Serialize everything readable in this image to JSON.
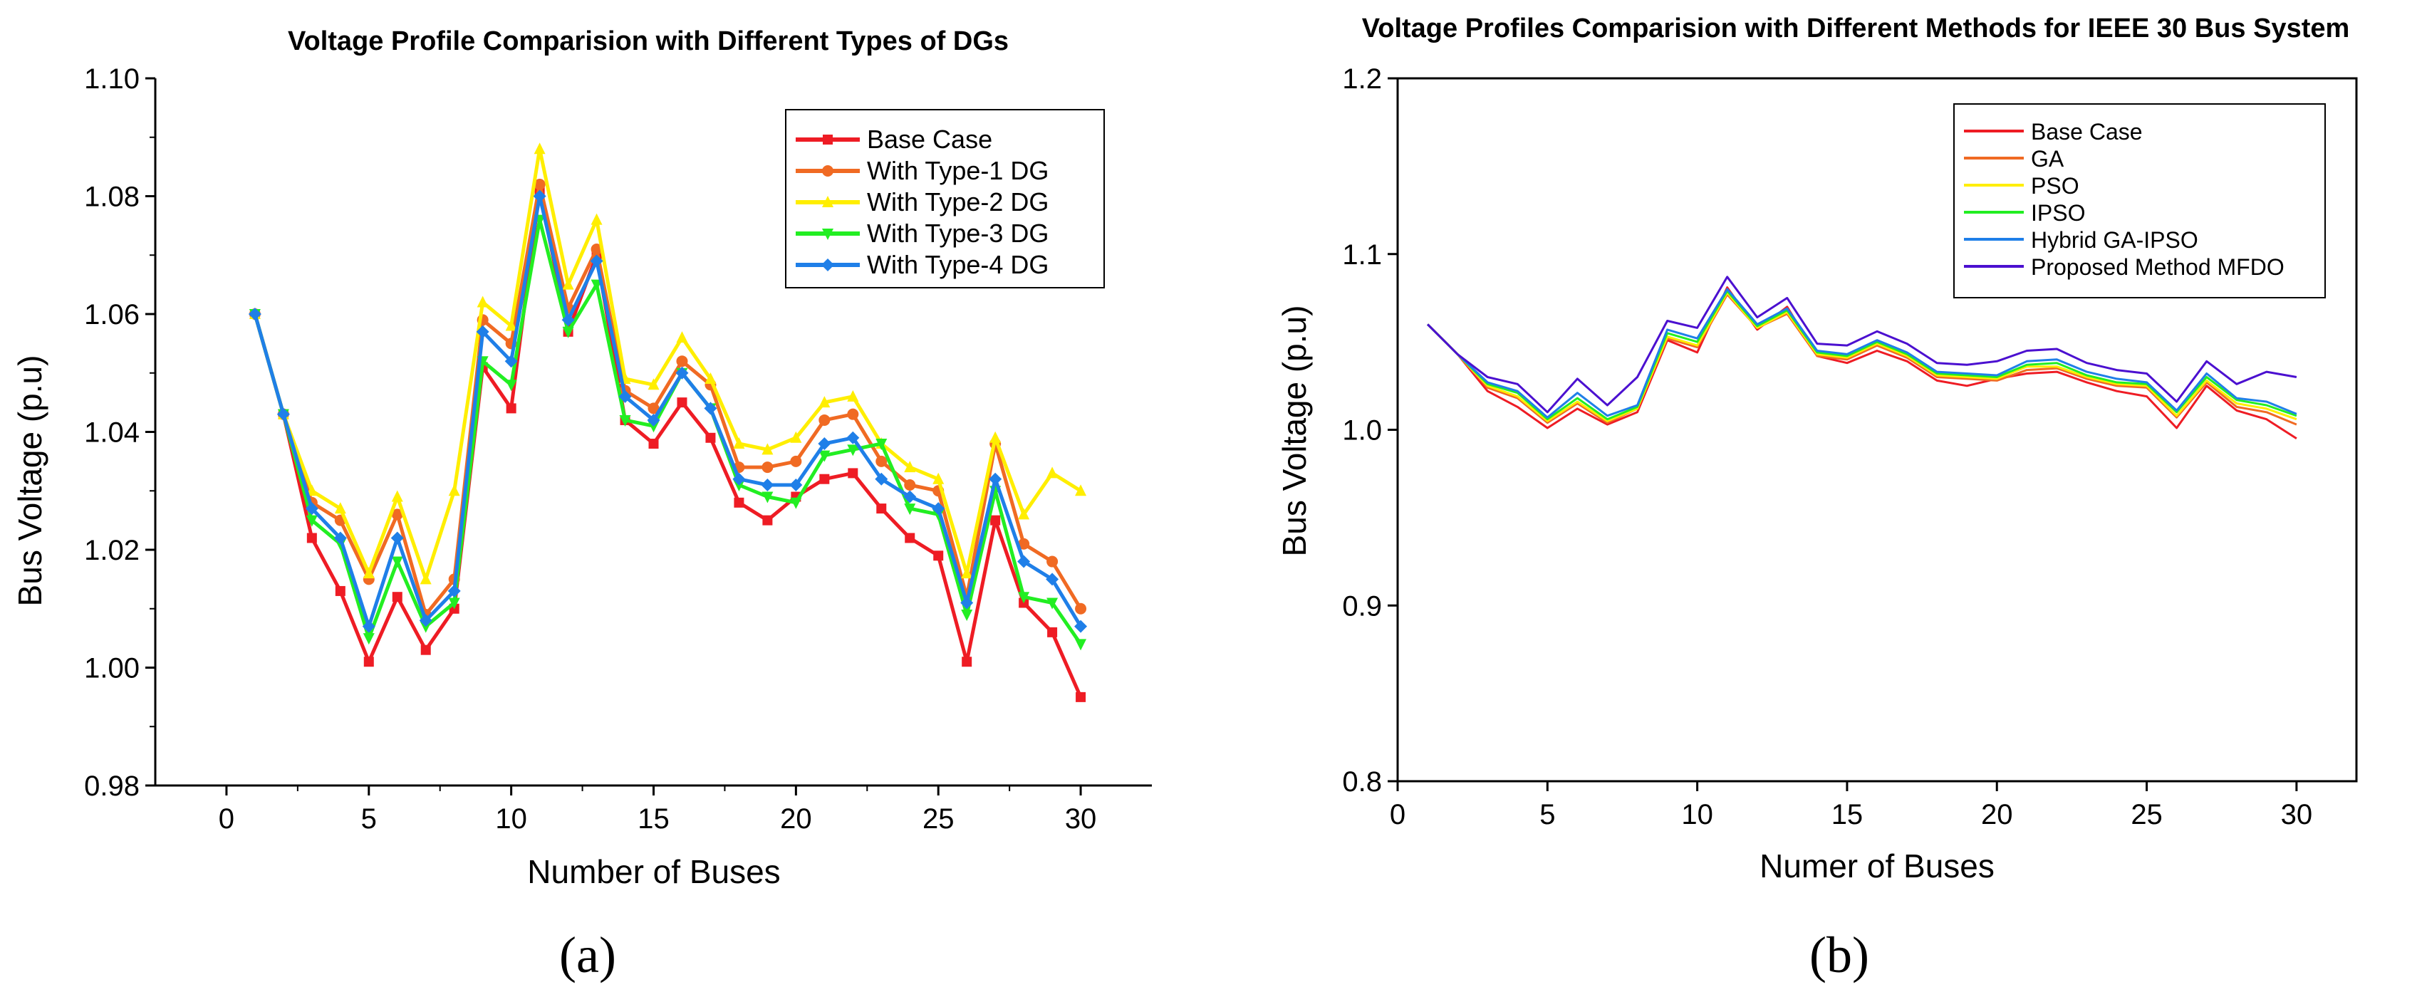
{
  "chart_data": [
    {
      "type": "line",
      "panel_label": "(a)",
      "title": "Voltage Profile Comparision with Different Types of DGs",
      "xlabel": "Number of Buses",
      "ylabel": "Bus Voltage (p.u)",
      "xlim": [
        -2.5,
        32.5
      ],
      "ylim": [
        0.98,
        1.1
      ],
      "xticks": [
        0,
        5,
        10,
        15,
        20,
        25,
        30
      ],
      "yticks": [
        0.98,
        1.0,
        1.02,
        1.04,
        1.06,
        1.08,
        1.1
      ],
      "ytick_labels": [
        "0.98",
        "1.00",
        "1.02",
        "1.04",
        "1.06",
        "1.08",
        "1.10"
      ],
      "legend_position": "top-right",
      "x": [
        1,
        2,
        3,
        4,
        5,
        6,
        7,
        8,
        9,
        10,
        11,
        12,
        13,
        14,
        15,
        16,
        17,
        18,
        19,
        20,
        21,
        22,
        23,
        24,
        25,
        26,
        27,
        28,
        29,
        30
      ],
      "series": [
        {
          "name": "Base Case",
          "color": "#ee1c24",
          "marker": "square",
          "values": [
            1.06,
            1.043,
            1.022,
            1.013,
            1.001,
            1.012,
            1.003,
            1.01,
            1.051,
            1.044,
            1.081,
            1.057,
            1.07,
            1.042,
            1.038,
            1.045,
            1.039,
            1.028,
            1.025,
            1.029,
            1.032,
            1.033,
            1.027,
            1.022,
            1.019,
            1.001,
            1.025,
            1.011,
            1.006,
            0.995
          ]
        },
        {
          "name": "With Type-1 DG",
          "color": "#f06a23",
          "marker": "circle",
          "values": [
            1.06,
            1.043,
            1.028,
            1.025,
            1.015,
            1.026,
            1.009,
            1.015,
            1.059,
            1.055,
            1.082,
            1.061,
            1.071,
            1.047,
            1.044,
            1.052,
            1.048,
            1.034,
            1.034,
            1.035,
            1.042,
            1.043,
            1.035,
            1.031,
            1.03,
            1.012,
            1.038,
            1.021,
            1.018,
            1.01
          ]
        },
        {
          "name": "With Type-2 DG",
          "color": "#ffee00",
          "marker": "triangle-up",
          "values": [
            1.06,
            1.043,
            1.03,
            1.027,
            1.016,
            1.029,
            1.015,
            1.03,
            1.062,
            1.058,
            1.088,
            1.065,
            1.076,
            1.049,
            1.048,
            1.056,
            1.049,
            1.038,
            1.037,
            1.039,
            1.045,
            1.046,
            1.038,
            1.034,
            1.032,
            1.016,
            1.039,
            1.026,
            1.033,
            1.03
          ]
        },
        {
          "name": "With Type-3 DG",
          "color": "#22ee22",
          "marker": "triangle-down",
          "values": [
            1.06,
            1.043,
            1.025,
            1.021,
            1.005,
            1.018,
            1.007,
            1.011,
            1.052,
            1.048,
            1.076,
            1.057,
            1.065,
            1.042,
            1.041,
            1.05,
            1.044,
            1.031,
            1.029,
            1.028,
            1.036,
            1.037,
            1.038,
            1.027,
            1.026,
            1.009,
            1.03,
            1.012,
            1.011,
            1.004
          ]
        },
        {
          "name": "With Type-4 DG",
          "color": "#1f7fe8",
          "marker": "diamond",
          "values": [
            1.06,
            1.043,
            1.027,
            1.022,
            1.007,
            1.022,
            1.008,
            1.013,
            1.057,
            1.052,
            1.08,
            1.059,
            1.069,
            1.046,
            1.042,
            1.05,
            1.044,
            1.032,
            1.031,
            1.031,
            1.038,
            1.039,
            1.032,
            1.029,
            1.027,
            1.011,
            1.032,
            1.018,
            1.015,
            1.007
          ]
        }
      ]
    },
    {
      "type": "line",
      "panel_label": "(b)",
      "title": "Voltage Profiles Comparision with Different Methods for IEEE 30 Bus System",
      "xlabel": "Numer of Buses",
      "ylabel": "Bus Voltage (p.u)",
      "xlim": [
        0,
        32
      ],
      "ylim": [
        0.8,
        1.2
      ],
      "xticks": [
        0,
        5,
        10,
        15,
        20,
        25,
        30
      ],
      "yticks": [
        0.8,
        0.9,
        1.0,
        1.1,
        1.2
      ],
      "ytick_labels": [
        "0.8",
        "0.9",
        "1.0",
        "1.1",
        "1.2"
      ],
      "legend_position": "top-right",
      "x": [
        1,
        2,
        3,
        4,
        5,
        6,
        7,
        8,
        9,
        10,
        11,
        12,
        13,
        14,
        15,
        16,
        17,
        18,
        19,
        20,
        21,
        22,
        23,
        24,
        25,
        26,
        27,
        28,
        29,
        30
      ],
      "series": [
        {
          "name": "Base Case",
          "color": "#ee1c24",
          "values": [
            1.06,
            1.043,
            1.022,
            1.013,
            1.001,
            1.012,
            1.003,
            1.01,
            1.051,
            1.044,
            1.081,
            1.057,
            1.07,
            1.042,
            1.038,
            1.045,
            1.039,
            1.028,
            1.025,
            1.029,
            1.032,
            1.033,
            1.027,
            1.022,
            1.019,
            1.001,
            1.025,
            1.011,
            1.006,
            0.995
          ]
        },
        {
          "name": "GA",
          "color": "#f06a23",
          "values": [
            1.06,
            1.043,
            1.024,
            1.018,
            1.004,
            1.015,
            1.004,
            1.012,
            1.052,
            1.047,
            1.077,
            1.058,
            1.066,
            1.042,
            1.04,
            1.048,
            1.041,
            1.03,
            1.029,
            1.028,
            1.034,
            1.035,
            1.029,
            1.025,
            1.024,
            1.007,
            1.027,
            1.013,
            1.01,
            1.003
          ]
        },
        {
          "name": "PSO",
          "color": "#ffee00",
          "values": [
            1.06,
            1.043,
            1.025,
            1.019,
            1.005,
            1.016,
            1.005,
            1.012,
            1.053,
            1.048,
            1.078,
            1.058,
            1.067,
            1.043,
            1.041,
            1.049,
            1.042,
            1.031,
            1.03,
            1.029,
            1.036,
            1.036,
            1.03,
            1.026,
            1.025,
            1.008,
            1.028,
            1.015,
            1.012,
            1.006
          ]
        },
        {
          "name": "IPSO",
          "color": "#22ee22",
          "values": [
            1.06,
            1.043,
            1.026,
            1.021,
            1.006,
            1.018,
            1.006,
            1.013,
            1.055,
            1.05,
            1.079,
            1.059,
            1.068,
            1.044,
            1.042,
            1.05,
            1.043,
            1.032,
            1.031,
            1.03,
            1.037,
            1.038,
            1.031,
            1.027,
            1.026,
            1.01,
            1.03,
            1.017,
            1.014,
            1.008
          ]
        },
        {
          "name": "Hybrid GA-IPSO",
          "color": "#1f7fe8",
          "values": [
            1.06,
            1.043,
            1.027,
            1.022,
            1.007,
            1.021,
            1.008,
            1.014,
            1.057,
            1.052,
            1.08,
            1.06,
            1.069,
            1.045,
            1.043,
            1.051,
            1.044,
            1.033,
            1.032,
            1.031,
            1.039,
            1.04,
            1.033,
            1.029,
            1.027,
            1.011,
            1.032,
            1.018,
            1.016,
            1.009
          ]
        },
        {
          "name": "Proposed Method MFDO",
          "color": "#4b10d0",
          "values": [
            1.06,
            1.043,
            1.03,
            1.026,
            1.01,
            1.029,
            1.014,
            1.03,
            1.062,
            1.058,
            1.087,
            1.064,
            1.075,
            1.049,
            1.048,
            1.056,
            1.049,
            1.038,
            1.037,
            1.039,
            1.045,
            1.046,
            1.038,
            1.034,
            1.032,
            1.016,
            1.039,
            1.026,
            1.033,
            1.03
          ]
        }
      ]
    }
  ]
}
